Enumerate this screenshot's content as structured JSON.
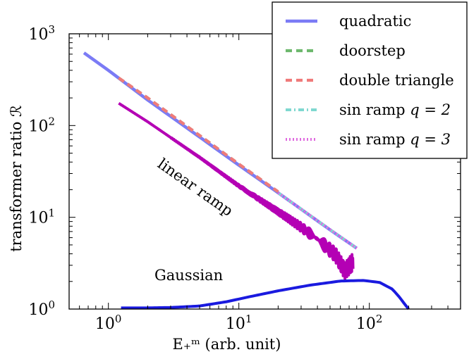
{
  "chart_data": {
    "type": "line",
    "xscale": "log",
    "yscale": "log",
    "xlim": [
      0.5,
      500
    ],
    "ylim": [
      1,
      1000
    ],
    "xlabel": "E₊ᵐ (arb. unit)",
    "ylabel": "transformer ratio ℛ",
    "xticks": [
      {
        "value": 1,
        "label": "10⁰"
      },
      {
        "value": 10,
        "label": "10¹"
      },
      {
        "value": 100,
        "label": "10²"
      }
    ],
    "yticks": [
      {
        "value": 1,
        "label": "10⁰"
      },
      {
        "value": 10,
        "label": "10¹"
      },
      {
        "value": 100,
        "label": "10²"
      },
      {
        "value": 1000,
        "label": "10³"
      }
    ],
    "grid": false,
    "legend_position": "top-right",
    "series": [
      {
        "name": "quadratic",
        "color": "#7b7bf5",
        "style": "solid",
        "x": [
          0.65,
          1,
          2,
          5,
          10,
          20,
          50,
          80
        ],
        "y": [
          620,
          400,
          190,
          75,
          37,
          18.5,
          7.3,
          4.6
        ]
      },
      {
        "name": "doorstep",
        "color": "#6db86d",
        "style": "dashed",
        "x": [
          1.2,
          2,
          5,
          10,
          20
        ],
        "y": [
          330,
          200,
          78,
          38,
          19
        ]
      },
      {
        "name": "double triangle",
        "color": "#f07a7a",
        "style": "dashed",
        "x": [
          1.2,
          2,
          5,
          10,
          20
        ],
        "y": [
          330,
          200,
          78,
          38,
          19
        ]
      },
      {
        "name": "sin ramp q = 2",
        "color": "#7fd8d0",
        "style": "dashdot",
        "x": [
          20,
          40,
          80
        ],
        "y": [
          18.5,
          9.2,
          4.6
        ]
      },
      {
        "name": "sin ramp q = 3",
        "color": "#e06be0",
        "style": "dotted",
        "x": [
          20,
          40,
          80
        ],
        "y": [
          18.5,
          9.2,
          4.6
        ]
      }
    ],
    "annotated_series": [
      {
        "label": "linear ramp",
        "color": "#b400b4",
        "x": [
          1.2,
          2,
          5,
          10,
          20,
          30,
          40,
          55,
          65,
          75
        ],
        "y": [
          175,
          110,
          45,
          22,
          11.5,
          7.8,
          5.8,
          3.9,
          2.6,
          3.3
        ],
        "oscillation": {
          "from_x": 22,
          "to_x": 78
        }
      },
      {
        "label": "Gaussian",
        "color": "#1a1adf",
        "x": [
          1.25,
          2,
          3,
          5,
          8,
          12,
          20,
          35,
          60,
          90,
          120,
          150,
          170,
          185,
          200
        ],
        "y": [
          1.03,
          1.03,
          1.04,
          1.08,
          1.2,
          1.36,
          1.58,
          1.82,
          2.02,
          2.05,
          1.95,
          1.65,
          1.35,
          1.15,
          1.0
        ]
      }
    ],
    "legend_entries": [
      {
        "label": "quadratic",
        "variable": ""
      },
      {
        "label": "doorstep",
        "variable": ""
      },
      {
        "label": "double triangle",
        "variable": ""
      },
      {
        "label": "sin ramp ",
        "variable": "q = 2"
      },
      {
        "label": "sin ramp ",
        "variable": "q = 3"
      }
    ]
  }
}
